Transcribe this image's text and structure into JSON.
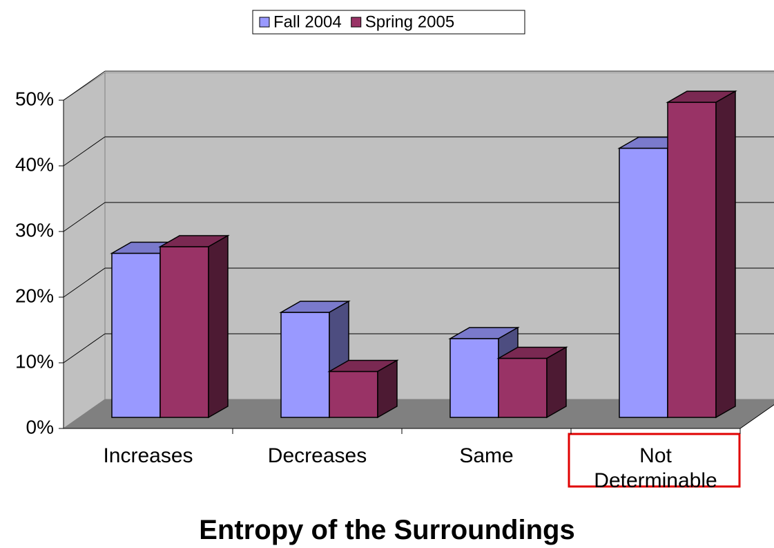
{
  "chart_data": {
    "type": "bar3d",
    "title": "Entropy of the Surroundings",
    "categories": [
      "Increases",
      "Decreases",
      "Same",
      "Not Determinable"
    ],
    "series": [
      {
        "name": "Fall 2004",
        "color": "#9999ff",
        "values": [
          25,
          16,
          12,
          41
        ]
      },
      {
        "name": "Spring 2005",
        "color": "#993366",
        "values": [
          26,
          7,
          9,
          48
        ]
      }
    ],
    "ylim": [
      0,
      50
    ],
    "yticks": [
      {
        "value": 0,
        "label": "0%"
      },
      {
        "value": 10,
        "label": "10%"
      },
      {
        "value": 20,
        "label": "20%"
      },
      {
        "value": 30,
        "label": "30%"
      },
      {
        "value": 40,
        "label": "40%"
      },
      {
        "value": 50,
        "label": "50%"
      }
    ],
    "grid": true,
    "legend": "top"
  }
}
